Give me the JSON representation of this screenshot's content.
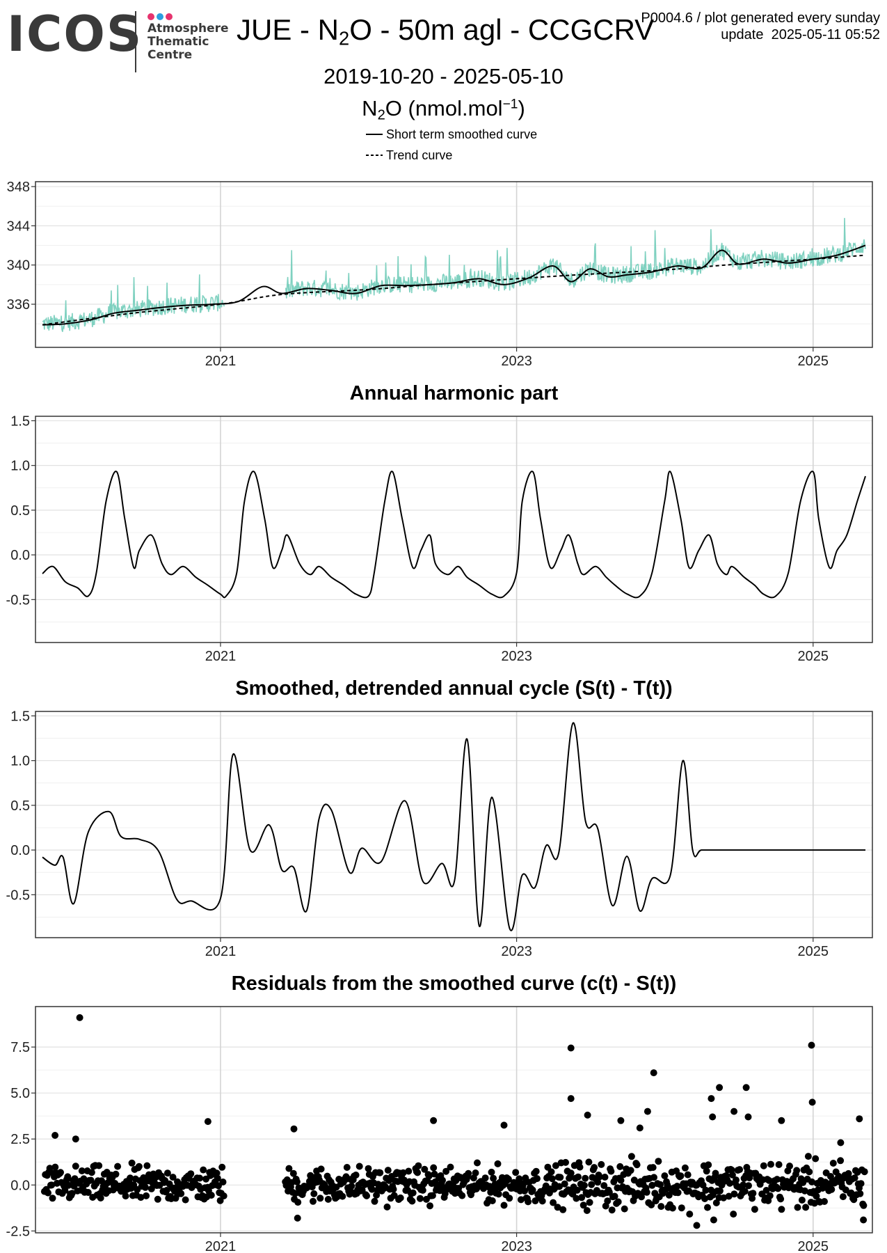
{
  "header": {
    "logo_text": "ICOS",
    "logo_sub": [
      "Atmosphere",
      "Thematic",
      "Centre"
    ],
    "logo_colors": [
      "#e6336e",
      "#2c9ee0",
      "#e6336e"
    ],
    "title_pre": "JUE - N",
    "title_sub": "2",
    "title_post": "O - 50m agl - CCGCRV",
    "meta_line1": "P0004.6 / plot generated every sunday",
    "meta_line2": "update  2025-05-11 05:52",
    "date_range": "2019-10-20 - 2025-05-10",
    "unit_pre": "N",
    "unit_sub": "2",
    "unit_mid": "O (nmol.mol",
    "unit_sup": "−1",
    "unit_post": ")",
    "legend_smooth": "Short term smoothed curve",
    "legend_trend": "Trend curve"
  },
  "chart_data": [
    {
      "type": "line",
      "title": "",
      "xticks": [
        "2021",
        "2023",
        "2025"
      ],
      "xlim": [
        "2019-10-20",
        "2025-05-10"
      ],
      "ylim": [
        331.6,
        348.5
      ],
      "yticks": [
        336,
        340,
        344,
        348
      ],
      "grid": true,
      "data_color": "#7fd1c0",
      "series": [
        {
          "name": "Short term smoothed curve",
          "style": "solid",
          "x": [
            "2019-10-20",
            "2019-12-15",
            "2020-02-15",
            "2020-04-15",
            "2020-06-15",
            "2020-08-15",
            "2020-10-15",
            "2020-12-15",
            "2021-02-15",
            "2021-04-15",
            "2021-06-01",
            "2021-08-01",
            "2021-10-01",
            "2021-12-01",
            "2022-02-01",
            "2022-04-01",
            "2022-06-01",
            "2022-08-01",
            "2022-10-01",
            "2022-12-01",
            "2023-02-01",
            "2023-04-01",
            "2023-05-15",
            "2023-07-01",
            "2023-08-15",
            "2023-10-01",
            "2023-12-01",
            "2024-02-01",
            "2024-04-01",
            "2024-05-20",
            "2024-07-01",
            "2024-09-01",
            "2024-11-01",
            "2025-01-01",
            "2025-03-01",
            "2025-05-10"
          ],
          "y": [
            333.9,
            334.0,
            334.4,
            335.1,
            335.4,
            335.7,
            335.9,
            336.0,
            336.3,
            337.8,
            337.1,
            337.6,
            337.4,
            337.1,
            337.9,
            337.9,
            338.0,
            338.2,
            338.6,
            338.0,
            338.7,
            339.9,
            338.3,
            339.6,
            338.8,
            339.0,
            339.3,
            339.9,
            339.7,
            341.5,
            340.1,
            340.6,
            340.2,
            340.6,
            341.0,
            342.0
          ]
        },
        {
          "name": "Trend curve",
          "style": "dashed",
          "x": [
            "2019-10-20",
            "2020-06-01",
            "2021-01-01",
            "2021-06-01",
            "2022-01-01",
            "2022-06-01",
            "2023-01-01",
            "2023-06-01",
            "2024-01-01",
            "2024-06-01",
            "2025-01-01",
            "2025-05-10"
          ],
          "y": [
            333.9,
            335.1,
            336.0,
            337.0,
            337.5,
            338.0,
            338.6,
            339.0,
            339.5,
            340.0,
            340.6,
            341.0
          ]
        }
      ]
    },
    {
      "type": "line",
      "title": "Annual harmonic part",
      "xticks": [
        "2021",
        "2023",
        "2025"
      ],
      "xlim": [
        "2019-10-20",
        "2025-05-10"
      ],
      "ylim": [
        -0.98,
        1.55
      ],
      "yticks": [
        -0.5,
        0.0,
        0.5,
        1.0,
        1.5
      ],
      "ytick_labels": [
        "-0.5",
        "0.0",
        "0.5",
        "1.0",
        "1.5"
      ],
      "grid": true,
      "series": [
        {
          "name": "",
          "x": [
            "2019-10-20",
            "2019-11-15",
            "2019-12-15",
            "2020-01-15",
            "2020-02-10",
            "2020-03-01",
            "2020-03-25",
            "2020-04-20",
            "2020-05-10",
            "2020-06-01",
            "2020-06-15",
            "2020-07-15",
            "2020-08-10",
            "2020-09-01",
            "2020-10-01",
            "2020-11-01",
            "2020-12-01",
            "2021-01-01",
            "2021-01-15",
            "2021-02-10",
            "2021-03-01",
            "2021-03-25",
            "2021-04-20",
            "2021-05-10",
            "2021-06-01",
            "2021-06-15",
            "2021-07-15",
            "2021-08-10",
            "2021-09-01",
            "2021-10-01",
            "2021-11-01",
            "2021-12-01",
            "2022-01-01",
            "2022-01-15",
            "2022-02-10",
            "2022-03-01",
            "2022-03-25",
            "2022-04-20",
            "2022-05-10",
            "2022-06-01",
            "2022-06-15",
            "2022-07-15",
            "2022-08-10",
            "2022-09-01",
            "2022-10-01",
            "2022-11-01",
            "2022-12-01",
            "2023-01-01",
            "2023-01-15",
            "2023-02-10",
            "2023-03-01",
            "2023-03-25",
            "2023-04-20",
            "2023-05-10",
            "2023-06-01",
            "2023-06-15",
            "2023-07-15",
            "2023-08-10",
            "2023-09-01",
            "2023-10-01",
            "2023-11-01",
            "2023-12-01",
            "2024-01-01",
            "2024-01-15",
            "2024-02-10",
            "2024-03-01",
            "2024-03-25",
            "2024-04-20",
            "2024-05-10",
            "2024-06-01",
            "2024-06-15",
            "2024-07-15",
            "2024-08-10",
            "2024-09-01",
            "2024-10-01",
            "2024-11-01",
            "2024-12-01",
            "2025-01-01",
            "2025-01-15",
            "2025-02-10",
            "2025-03-01",
            "2025-03-25",
            "2025-04-20",
            "2025-05-10"
          ],
          "y": [
            -0.21,
            -0.13,
            -0.3,
            -0.37,
            -0.46,
            -0.2,
            0.6,
            0.93,
            0.4,
            -0.14,
            0.05,
            0.22,
            -0.1,
            -0.22,
            -0.13,
            -0.25,
            -0.34,
            -0.44,
            -0.46,
            -0.2,
            0.6,
            0.93,
            0.4,
            -0.14,
            0.05,
            0.22,
            -0.1,
            -0.22,
            -0.13,
            -0.25,
            -0.34,
            -0.44,
            -0.46,
            -0.2,
            0.6,
            0.93,
            0.4,
            -0.14,
            0.05,
            0.22,
            -0.1,
            -0.22,
            -0.13,
            -0.25,
            -0.34,
            -0.44,
            -0.46,
            -0.2,
            0.6,
            0.93,
            0.4,
            -0.14,
            0.05,
            0.22,
            -0.1,
            -0.22,
            -0.13,
            -0.25,
            -0.34,
            -0.44,
            -0.46,
            -0.2,
            0.6,
            0.93,
            0.4,
            -0.14,
            0.05,
            0.22,
            -0.1,
            -0.22,
            -0.13,
            -0.25,
            -0.34,
            -0.44,
            -0.46,
            -0.2,
            0.6,
            0.93,
            0.4,
            -0.14,
            0.05,
            0.22,
            0.6,
            0.88
          ]
        }
      ]
    },
    {
      "type": "line",
      "title": "Smoothed, detrended annual cycle (S(t) - T(t))",
      "xticks": [
        "2021",
        "2023",
        "2025"
      ],
      "xlim": [
        "2019-10-20",
        "2025-05-10"
      ],
      "ylim": [
        -0.98,
        1.55
      ],
      "yticks": [
        -0.5,
        0.0,
        0.5,
        1.0,
        1.5
      ],
      "ytick_labels": [
        "-0.5",
        "0.0",
        "0.5",
        "1.0",
        "1.5"
      ],
      "grid": true,
      "series": [
        {
          "name": "",
          "x": [
            "2019-10-20",
            "2019-11-20",
            "2019-12-10",
            "2020-01-05",
            "2020-02-10",
            "2020-04-01",
            "2020-05-01",
            "2020-06-15",
            "2020-08-01",
            "2020-09-15",
            "2020-10-20",
            "2021-01-01",
            "2021-02-01",
            "2021-03-15",
            "2021-05-01",
            "2021-06-01",
            "2021-07-01",
            "2021-08-01",
            "2021-09-01",
            "2021-10-01",
            "2021-11-15",
            "2021-12-15",
            "2022-02-01",
            "2022-04-01",
            "2022-05-15",
            "2022-07-01",
            "2022-08-01",
            "2022-09-01",
            "2022-10-01",
            "2022-11-01",
            "2022-12-15",
            "2023-01-15",
            "2023-02-15",
            "2023-03-15",
            "2023-04-15",
            "2023-05-20",
            "2023-06-20",
            "2023-07-20",
            "2023-08-25",
            "2023-09-30",
            "2023-11-01",
            "2023-12-01",
            "2024-01-15",
            "2024-02-15",
            "2024-03-10",
            "2024-04-01",
            "2024-05-20",
            "2024-07-01",
            "2024-08-01",
            "2024-09-01",
            "2024-10-05",
            "2024-11-15",
            "2024-12-20",
            "2025-01-20",
            "2025-02-15",
            "2025-03-20",
            "2025-05-10"
          ],
          "y": [
            -0.08,
            -0.17,
            -0.08,
            -0.6,
            0.2,
            0.43,
            0.15,
            0.12,
            -0.01,
            -0.55,
            -0.57,
            -0.54,
            1.07,
            0.0,
            0.28,
            -0.22,
            -0.2,
            -0.68,
            0.35,
            0.45,
            -0.25,
            0.02,
            -0.13,
            0.55,
            -0.35,
            -0.15,
            -0.34,
            1.24,
            -0.85,
            0.59,
            -0.88,
            -0.28,
            -0.42,
            0.05,
            -0.03,
            1.42,
            0.32,
            0.24,
            -0.62,
            -0.07,
            -0.68,
            -0.32,
            -0.28,
            1.0,
            0.0,
            0.0,
            0.0,
            0.0,
            0.0,
            0.0,
            0.0,
            0.0,
            0.0,
            0.0,
            0.0,
            0.0,
            0.0
          ]
        }
      ]
    },
    {
      "type": "scatter",
      "title": "Residuals from the smoothed curve (c(t) - S(t))",
      "xticks": [
        "2021",
        "2023",
        "2025"
      ],
      "xlim": [
        "2019-10-20",
        "2025-05-10"
      ],
      "ylim": [
        -2.6,
        9.7
      ],
      "yticks": [
        -2.5,
        0.0,
        2.5,
        5.0,
        7.5
      ],
      "ytick_labels": [
        "-2.5",
        "0.0",
        "2.5",
        "5.0",
        "7.5"
      ],
      "grid": true,
      "data_gap": [
        "2021-01-10",
        "2021-06-10"
      ],
      "outliers": [
        {
          "x": "2020-01-20",
          "y": 9.1
        },
        {
          "x": "2023-05-15",
          "y": 7.45
        },
        {
          "x": "2024-12-28",
          "y": 7.6
        },
        {
          "x": "2023-12-05",
          "y": 6.1
        },
        {
          "x": "2024-05-15",
          "y": 5.3
        },
        {
          "x": "2024-07-20",
          "y": 5.3
        },
        {
          "x": "2024-12-30",
          "y": 4.5
        },
        {
          "x": "2023-05-15",
          "y": 4.7
        },
        {
          "x": "2024-04-25",
          "y": 4.7
        },
        {
          "x": "2023-11-20",
          "y": 4.0
        },
        {
          "x": "2024-06-20",
          "y": 4.0
        },
        {
          "x": "2024-04-28",
          "y": 3.7
        },
        {
          "x": "2024-07-25",
          "y": 3.7
        },
        {
          "x": "2023-06-25",
          "y": 3.8
        },
        {
          "x": "2023-09-15",
          "y": 3.5
        },
        {
          "x": "2022-06-10",
          "y": 3.5
        },
        {
          "x": "2020-12-01",
          "y": 3.45
        },
        {
          "x": "2021-07-01",
          "y": 3.05
        },
        {
          "x": "2023-11-01",
          "y": 3.1
        },
        {
          "x": "2025-04-25",
          "y": 3.6
        },
        {
          "x": "2024-10-15",
          "y": 3.5
        },
        {
          "x": "2022-12-01",
          "y": 3.25
        },
        {
          "x": "2020-01-10",
          "y": 2.5
        },
        {
          "x": "2019-11-20",
          "y": 2.7
        },
        {
          "x": "2025-03-10",
          "y": 2.3
        },
        {
          "x": "2025-05-05",
          "y": -1.9
        },
        {
          "x": "2021-07-10",
          "y": -1.8
        },
        {
          "x": "2024-03-20",
          "y": -2.2
        },
        {
          "x": "2024-05-01",
          "y": -1.9
        }
      ],
      "bulk_range": [
        -1.6,
        2.3
      ]
    }
  ]
}
